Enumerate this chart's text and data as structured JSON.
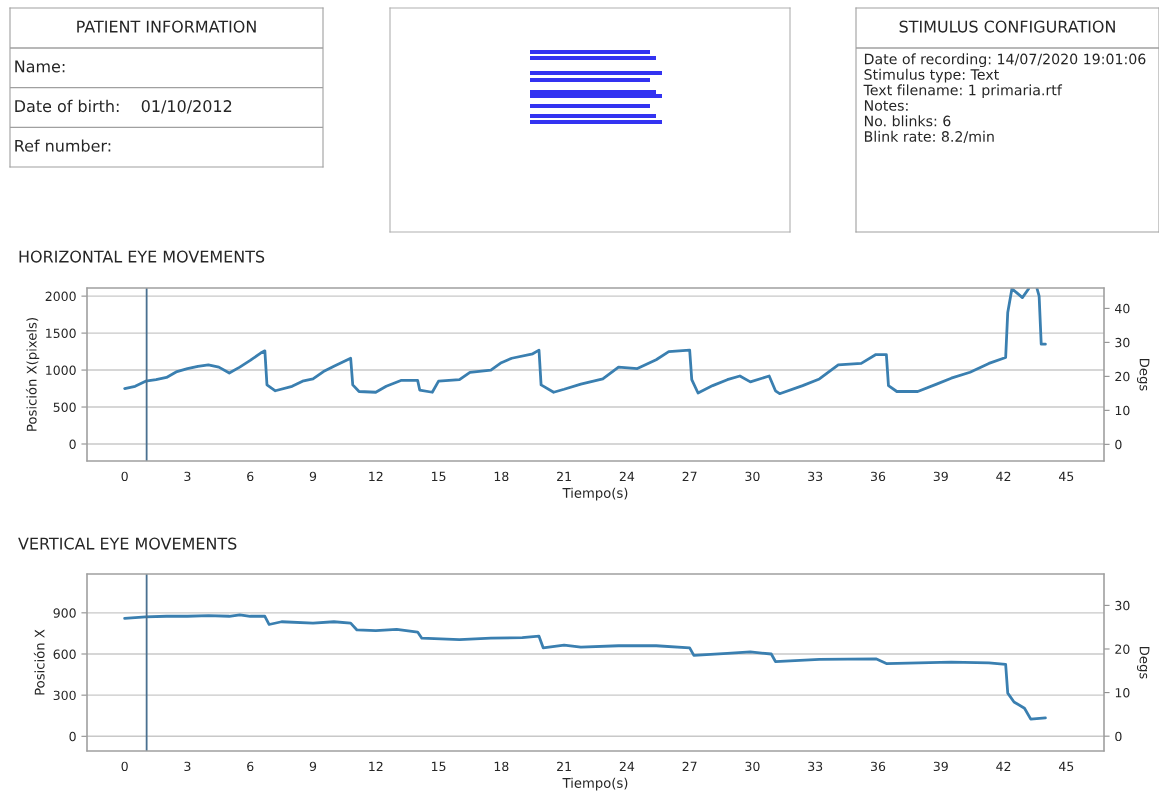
{
  "chart_data": [
    {
      "type": "other",
      "title": "PATIENT INFORMATION",
      "annotations": [
        "Name:",
        "Date of birth:    01/10/2012",
        "Ref number:"
      ]
    },
    {
      "type": "other",
      "title": "STIMULUS CONFIGURATION",
      "annotations": [
        "Date of recording: 14/07/2020 19:01:06",
        "Stimulus type: Text",
        "Text filename: 1 primaria.rtf",
        "Notes:",
        "No. blinks: 6",
        "Blink rate: 8.2/min"
      ]
    },
    {
      "type": "line",
      "title": "HORIZONTAL EYE MOVEMENTS",
      "xlabel": "Tiempo(s)",
      "ylabel": "Posición X(pixels)",
      "y2label": "Degs",
      "grid": "y",
      "xlim": [
        -1.8,
        46.8
      ],
      "xticks": [
        0,
        3,
        6,
        9,
        12,
        15,
        18,
        21,
        24,
        27,
        30,
        33,
        36,
        39,
        42,
        45
      ],
      "ylim": [
        -230,
        2110
      ],
      "yticks": [
        0,
        500,
        1000,
        1500,
        2000
      ],
      "y2lim": [
        -4.9,
        46.0
      ],
      "y2ticks": [
        0,
        10,
        20,
        30,
        40
      ],
      "ref_lines": [
        {
          "axis": "x",
          "value": 1.05,
          "color": "#4a7090"
        }
      ],
      "series": [
        {
          "color": "#3a7fb0",
          "x": [
            0,
            0.5,
            1,
            1.5,
            2,
            2.5,
            3,
            3.5,
            4,
            4.5,
            5,
            5.5,
            6,
            6.5,
            6.7,
            6.8,
            7.2,
            8,
            8.5,
            9,
            9.5,
            10,
            10.8,
            10.9,
            11.2,
            12,
            12.5,
            13.2,
            14,
            14.1,
            14.7,
            15,
            16,
            16.5,
            17.5,
            18,
            18.5,
            19.5,
            19.8,
            19.9,
            20.5,
            21,
            21.8,
            22.85,
            23.6,
            24.5,
            25.4,
            26.0,
            27.0,
            27.1,
            27.4,
            28.1,
            28.8,
            29.4,
            29.9,
            30.8,
            31.1,
            31.3,
            32.4,
            33.2,
            34.1,
            35.2,
            35.9,
            36.4,
            36.5,
            36.9,
            37.9,
            38.8,
            39.5,
            40.4,
            41.3,
            42.1,
            42.2,
            42.4,
            42.9,
            43.2,
            43.4,
            43.6,
            43.7,
            43.8,
            44.0
          ],
          "values": [
            750,
            780,
            850,
            870,
            900,
            980,
            1020,
            1050,
            1070,
            1040,
            960,
            1040,
            1130,
            1230,
            1260,
            800,
            720,
            780,
            850,
            880,
            980,
            1050,
            1160,
            800,
            710,
            700,
            780,
            860,
            860,
            730,
            700,
            850,
            870,
            970,
            1000,
            1100,
            1160,
            1220,
            1270,
            800,
            700,
            740,
            810,
            880,
            1040,
            1020,
            1140,
            1250,
            1270,
            870,
            690,
            790,
            870,
            920,
            840,
            920,
            720,
            680,
            790,
            880,
            1070,
            1090,
            1210,
            1210,
            790,
            710,
            710,
            810,
            890,
            970,
            1090,
            1170,
            1780,
            2100,
            1980,
            2100,
            null,
            2100,
            2000,
            1350,
            1350
          ]
        }
      ]
    },
    {
      "type": "line",
      "title": "VERTICAL EYE MOVEMENTS",
      "xlabel": "Tiempo(s)",
      "ylabel": "Posición X",
      "y2label": "Degs",
      "grid": "y",
      "xlim": [
        -1.8,
        46.8
      ],
      "xticks": [
        0,
        3,
        6,
        9,
        12,
        15,
        18,
        21,
        24,
        27,
        30,
        33,
        36,
        39,
        42,
        45
      ],
      "ylim": [
        -107,
        1183
      ],
      "yticks": [
        0,
        300,
        600,
        900
      ],
      "y2lim": [
        -3.4,
        37.2
      ],
      "y2ticks": [
        0,
        10,
        20,
        30
      ],
      "ref_lines": [
        {
          "axis": "x",
          "value": 1.05,
          "color": "#4a7090"
        }
      ],
      "series": [
        {
          "color": "#3a7fb0",
          "x": [
            0,
            1,
            2,
            3,
            4,
            5,
            5.5,
            6,
            6.7,
            6.9,
            7.5,
            9,
            10,
            10.8,
            11.1,
            12,
            13,
            14,
            14.2,
            16,
            17.5,
            19,
            19.8,
            20,
            21,
            21.8,
            23.6,
            25.4,
            27.0,
            27.2,
            28.8,
            29.9,
            30.9,
            31.1,
            33.2,
            35.9,
            36.4,
            39.5,
            41.3,
            42.1,
            42.2,
            42.5,
            43.0,
            43.3,
            44.0
          ],
          "values": [
            860,
            870,
            875,
            875,
            880,
            875,
            885,
            875,
            875,
            815,
            835,
            825,
            835,
            825,
            775,
            770,
            780,
            760,
            715,
            705,
            715,
            720,
            730,
            645,
            665,
            650,
            660,
            660,
            645,
            590,
            605,
            615,
            600,
            545,
            560,
            565,
            530,
            540,
            535,
            525,
            315,
            250,
            205,
            125,
            135
          ]
        }
      ]
    }
  ]
}
